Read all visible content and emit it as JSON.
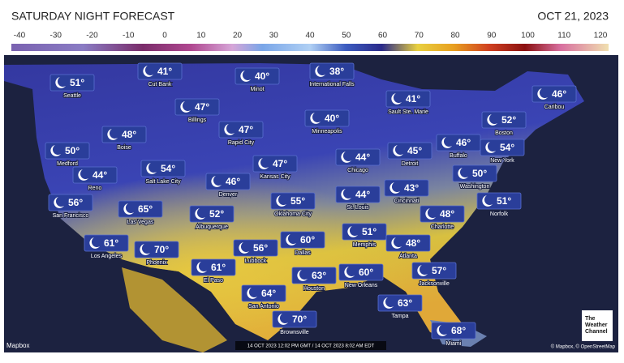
{
  "header": {
    "title": "SATURDAY NIGHT FORECAST",
    "date": "OCT 21, 2023"
  },
  "legend": {
    "ticks": [
      -40,
      -30,
      -20,
      -10,
      0,
      10,
      20,
      30,
      40,
      50,
      60,
      70,
      80,
      90,
      100,
      110,
      120
    ]
  },
  "cities": [
    {
      "name": "Seattle",
      "temp": "51°"
    },
    {
      "name": "Cut Bank",
      "temp": "41°"
    },
    {
      "name": "Minot",
      "temp": "40°"
    },
    {
      "name": "International Falls",
      "temp": "38°"
    },
    {
      "name": "Sault Ste. Marie",
      "temp": "41°"
    },
    {
      "name": "Caribou",
      "temp": "46°"
    },
    {
      "name": "Billings",
      "temp": "47°"
    },
    {
      "name": "Boise",
      "temp": "48°"
    },
    {
      "name": "Rapid City",
      "temp": "47°"
    },
    {
      "name": "Minneapolis",
      "temp": "40°"
    },
    {
      "name": "Boston",
      "temp": "52°"
    },
    {
      "name": "Medford",
      "temp": "50°"
    },
    {
      "name": "Salt Lake City",
      "temp": "54°"
    },
    {
      "name": "Kansas City",
      "temp": "47°"
    },
    {
      "name": "Chicago",
      "temp": "44°"
    },
    {
      "name": "Detroit",
      "temp": "45°"
    },
    {
      "name": "Buffalo",
      "temp": "46°"
    },
    {
      "name": "New York",
      "temp": "54°"
    },
    {
      "name": "Reno",
      "temp": "44°"
    },
    {
      "name": "Denver",
      "temp": "46°"
    },
    {
      "name": "Washington",
      "temp": "50°"
    },
    {
      "name": "St. Louis",
      "temp": "44°"
    },
    {
      "name": "Cincinnati",
      "temp": "43°"
    },
    {
      "name": "San Francisco",
      "temp": "56°"
    },
    {
      "name": "Las Vegas",
      "temp": "65°"
    },
    {
      "name": "Albuquerque",
      "temp": "52°"
    },
    {
      "name": "Oklahoma City",
      "temp": "55°"
    },
    {
      "name": "Norfolk",
      "temp": "51°"
    },
    {
      "name": "Charlotte",
      "temp": "48°"
    },
    {
      "name": "Memphis",
      "temp": "51°"
    },
    {
      "name": "Los Angeles",
      "temp": "61°"
    },
    {
      "name": "Phoenix",
      "temp": "70°"
    },
    {
      "name": "Lubbock",
      "temp": "56°"
    },
    {
      "name": "Dallas",
      "temp": "60°"
    },
    {
      "name": "Atlanta",
      "temp": "48°"
    },
    {
      "name": "El Paso",
      "temp": "61°"
    },
    {
      "name": "Houston",
      "temp": "63°"
    },
    {
      "name": "New Orleans",
      "temp": "60°"
    },
    {
      "name": "Jacksonville",
      "temp": "57°"
    },
    {
      "name": "San Antonio",
      "temp": "64°"
    },
    {
      "name": "Tampa",
      "temp": "63°"
    },
    {
      "name": "Brownsville",
      "temp": "70°"
    },
    {
      "name": "Miami",
      "temp": "68°"
    }
  ],
  "footer": {
    "provider": "Mapbox",
    "timestamp": "14 OCT 2023 12:02 PM GMT / 14 OCT 2023 8:02 AM EDT",
    "credits": "© Mapbox, © OpenStreetMap",
    "logo": [
      "The",
      "Weather",
      "Channel"
    ]
  }
}
